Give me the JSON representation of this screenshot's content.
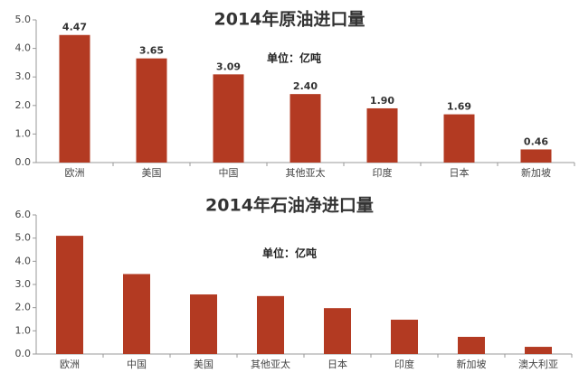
{
  "chart_data": [
    {
      "type": "bar",
      "title": "2014年原油进口量",
      "subtitle": "单位：亿吨",
      "categories": [
        "欧洲",
        "美国",
        "中国",
        "其他亚太",
        "印度",
        "日本",
        "新加坡"
      ],
      "values": [
        4.47,
        3.65,
        3.09,
        2.4,
        1.9,
        1.69,
        0.46
      ],
      "value_labels": [
        "4.47",
        "3.65",
        "3.09",
        "2.40",
        "1.90",
        "1.69",
        "0.46"
      ],
      "color": "#b33a22",
      "ylim": [
        0,
        5
      ],
      "yticks": [
        {
          "value": 0,
          "label": "0.0"
        },
        {
          "value": 1,
          "label": "1.0"
        },
        {
          "value": 2,
          "label": "2.0"
        },
        {
          "value": 3,
          "label": "3.0"
        },
        {
          "value": 4,
          "label": "4.0"
        },
        {
          "value": 5,
          "label": "5.0"
        }
      ]
    },
    {
      "type": "bar",
      "title": "2014年石油净进口量",
      "subtitle": "单位：亿吨",
      "categories": [
        "欧洲",
        "中国",
        "美国",
        "其他亚太",
        "日本",
        "印度",
        "新加坡",
        "澳大利亚"
      ],
      "values": [
        5.1,
        3.45,
        2.57,
        2.5,
        1.98,
        1.48,
        0.74,
        0.31
      ],
      "color": "#b33a22",
      "ylim": [
        0,
        6
      ],
      "yticks": [
        {
          "value": 0,
          "label": "0.0"
        },
        {
          "value": 1,
          "label": "1.0"
        },
        {
          "value": 2,
          "label": "2.0"
        },
        {
          "value": 3,
          "label": "3.0"
        },
        {
          "value": 4,
          "label": "4.0"
        },
        {
          "value": 5,
          "label": "5.0"
        },
        {
          "value": 6,
          "label": "6.0"
        }
      ]
    }
  ]
}
